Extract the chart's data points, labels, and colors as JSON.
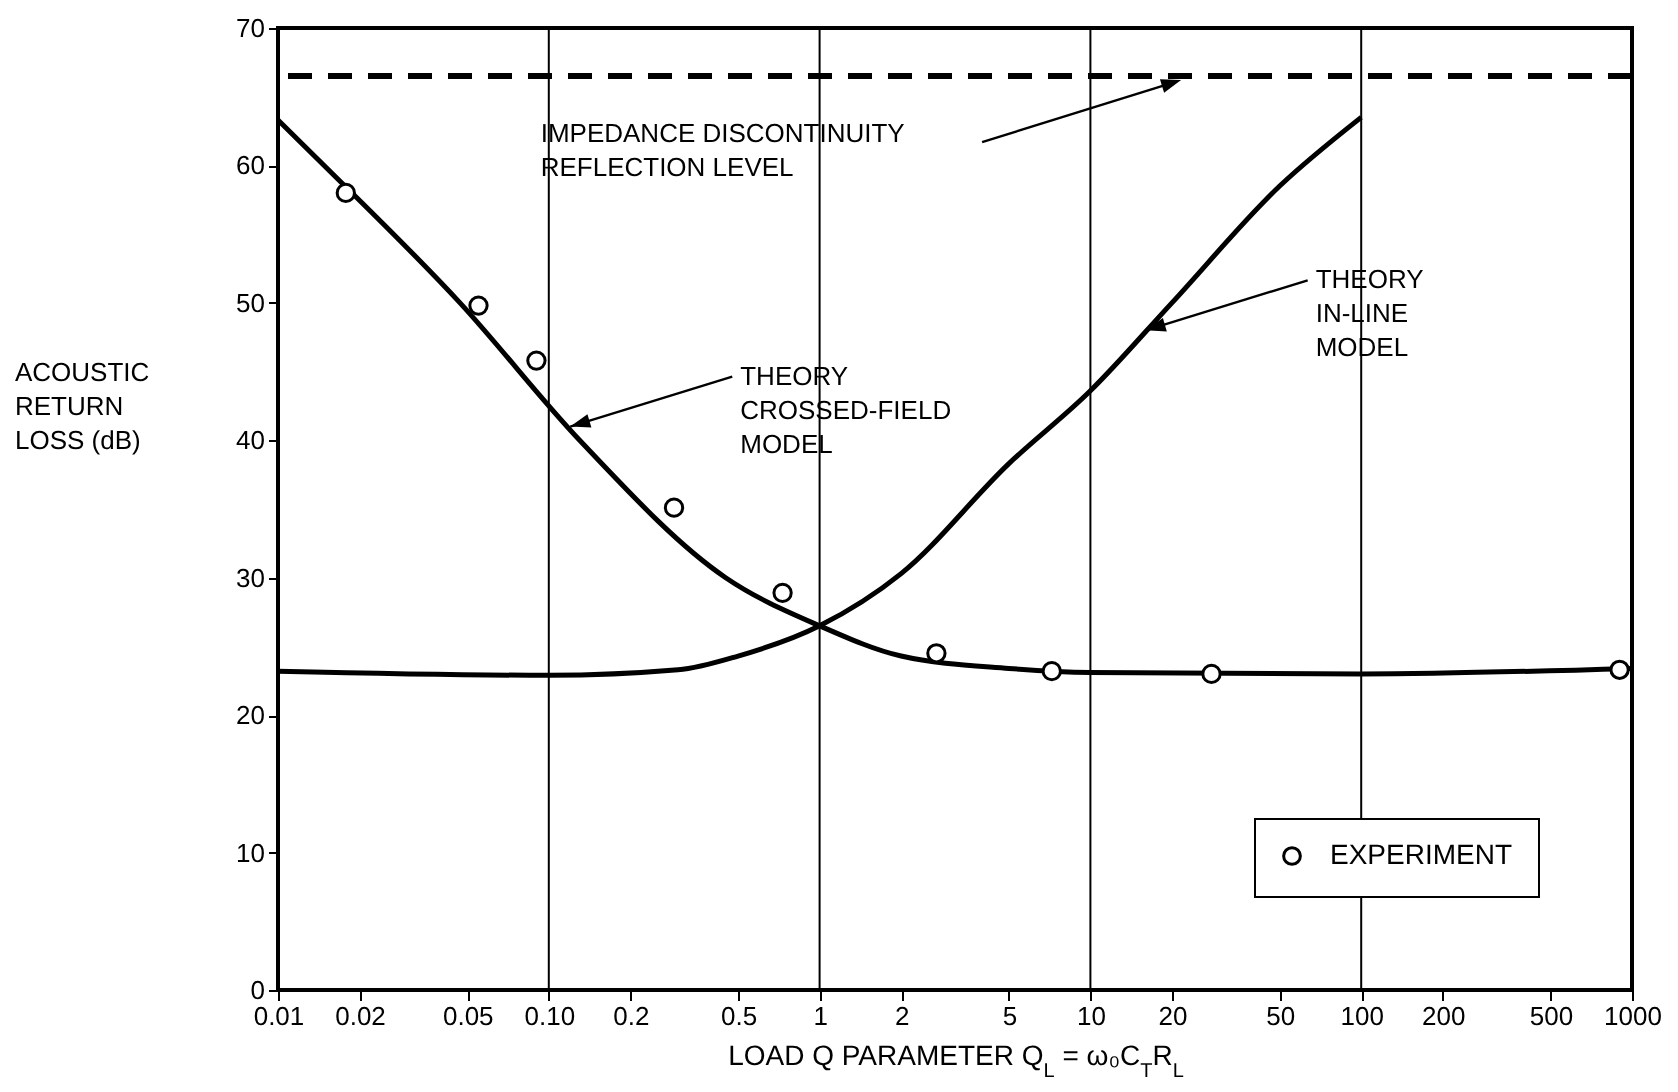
{
  "chart_data": {
    "type": "line",
    "xlabel": "LOAD Q PARAMETER Q$_{L}$ = ω₀C$_{T}$R$_{L}$",
    "ylabel": "ACOUSTIC RETURN LOSS (dB)",
    "log": "x",
    "grid": true,
    "legend": "bottom right",
    "xlim": [
      0.01,
      1000
    ],
    "ylim": [
      0,
      70
    ],
    "xticks": [
      0.01,
      0.02,
      0.05,
      {
        "value": 0.1,
        "label": "0.10"
      },
      0.2,
      0.5,
      1,
      2,
      5,
      10,
      20,
      50,
      100,
      200,
      500,
      1000
    ],
    "yticks": [
      0,
      10,
      20,
      30,
      40,
      50,
      60,
      70
    ],
    "series": [
      {
        "color": "#000000",
        "marker": "none",
        "line_style": "solid",
        "x": [
          0.01,
          0.0148,
          0.047,
          0.13,
          0.45,
          1,
          2,
          5,
          10,
          100,
          1000
        ],
        "values": [
          63.3,
          60,
          50,
          40,
          30,
          26.5,
          24.3,
          23.4,
          23.1,
          23.0,
          23.4
        ]
      },
      {
        "color": "#000000",
        "marker": "none",
        "line_style": "solid",
        "x": [
          0.01,
          0.1,
          0.3,
          0.5,
          1,
          2,
          5,
          10,
          20,
          50,
          100
        ],
        "values": [
          23.2,
          22.9,
          23.3,
          24.3,
          26.5,
          30.3,
          38.3,
          43.6,
          50,
          58.5,
          63.5
        ]
      },
      {
        "type": "scatter",
        "name": "EXPERIMENT",
        "color": "#000000",
        "marker": "circle",
        "x": [
          0.0178,
          0.055,
          0.09,
          0.29,
          0.73,
          2.7,
          7.2,
          28,
          900
        ],
        "values": [
          58.0,
          49.8,
          45.8,
          35.1,
          28.9,
          24.5,
          23.2,
          23.0,
          23.3
        ]
      }
    ],
    "ref_lines": [
      {
        "axis": "y",
        "value": 66.5,
        "label": "IMPEDANCE DISCONTINUITY REFLECTION LEVEL",
        "color": "#000000",
        "line_style": "dashed"
      }
    ],
    "annotations": [
      {
        "text": "THEORY CROSSED-FIELD MODEL",
        "x": 0.12,
        "y": 41
      },
      {
        "text": "THEORY IN-LINE MODEL",
        "x": 16,
        "y": 48
      }
    ]
  }
}
